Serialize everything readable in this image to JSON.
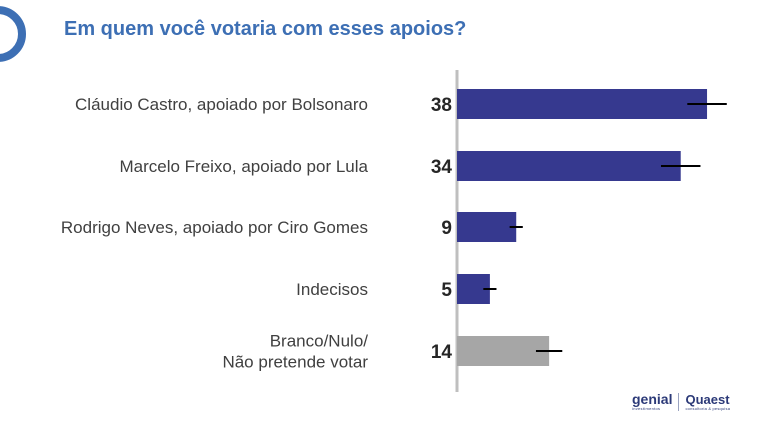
{
  "title": "Em quem você votaria com esses apoios?",
  "chart_data": {
    "type": "bar",
    "orientation": "horizontal",
    "title": "Em quem você votaria com esses apoios?",
    "categories": [
      [
        "Cláudio Castro, apoiado por Bolsonaro"
      ],
      [
        "Marcelo Freixo, apoiado por Lula"
      ],
      [
        "Rodrigo Neves, apoiado por Ciro Gomes"
      ],
      [
        "Indecisos"
      ],
      [
        "Branco/Nulo/",
        "Não pretende votar"
      ]
    ],
    "values": [
      38,
      34,
      9,
      5,
      14
    ],
    "value_labels": [
      "38",
      "34",
      "9",
      "5",
      "14"
    ],
    "error_margin": [
      3,
      3,
      1,
      1,
      2
    ],
    "bar_colors": [
      "#36398f",
      "#36398f",
      "#36398f",
      "#36398f",
      "#a6a6a6"
    ],
    "axis_color": "#bfbfbf",
    "xlim": [
      0,
      40
    ],
    "grid": false,
    "legend": "none"
  },
  "logos": {
    "genial_word": "genial",
    "genial_sub": "investimentos",
    "quaest_word": "Quaest",
    "quaest_sub": "consultoria & pesquisa"
  },
  "colors": {
    "title": "#3d6fb4",
    "accent": "#3d6fb4"
  }
}
